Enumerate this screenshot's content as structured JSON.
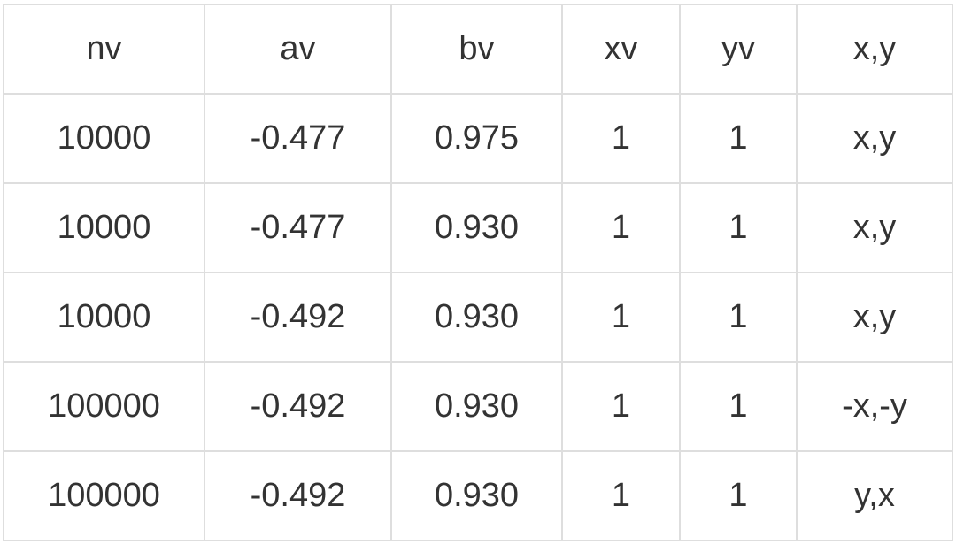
{
  "table": {
    "headers": [
      "nv",
      "av",
      "bv",
      "xv",
      "yv",
      "x,y"
    ],
    "rows": [
      [
        "10000",
        "-0.477",
        "0.975",
        "1",
        "1",
        "x,y"
      ],
      [
        "10000",
        "-0.477",
        "0.930",
        "1",
        "1",
        "x,y"
      ],
      [
        "10000",
        "-0.492",
        "0.930",
        "1",
        "1",
        "x,y"
      ],
      [
        "100000",
        "-0.492",
        "0.930",
        "1",
        "1",
        "-x,-y"
      ],
      [
        "100000",
        "-0.492",
        "0.930",
        "1",
        "1",
        "y,x"
      ]
    ]
  }
}
